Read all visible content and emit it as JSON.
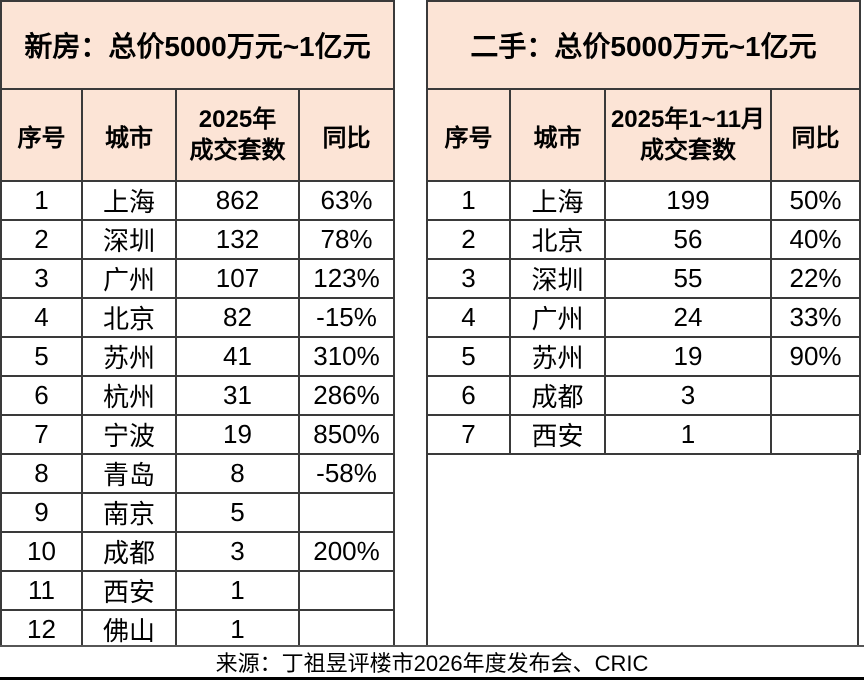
{
  "chart_data": [
    {
      "type": "table",
      "table_name": "new_homes",
      "title": "新房：总价5000万元~1亿元",
      "columns": [
        "序号",
        "城市",
        "2025年成交套数",
        "同比"
      ],
      "col3_lines": [
        "2025年",
        "成交套数"
      ],
      "rows": [
        [
          "1",
          "上海",
          "862",
          "63%"
        ],
        [
          "2",
          "深圳",
          "132",
          "78%"
        ],
        [
          "3",
          "广州",
          "107",
          "123%"
        ],
        [
          "4",
          "北京",
          "82",
          "-15%"
        ],
        [
          "5",
          "苏州",
          "41",
          "310%"
        ],
        [
          "6",
          "杭州",
          "31",
          "286%"
        ],
        [
          "7",
          "宁波",
          "19",
          "850%"
        ],
        [
          "8",
          "青岛",
          "8",
          "-58%"
        ],
        [
          "9",
          "南京",
          "5",
          ""
        ],
        [
          "10",
          "成都",
          "3",
          "200%"
        ],
        [
          "11",
          "西安",
          "1",
          ""
        ],
        [
          "12",
          "佛山",
          "1",
          ""
        ]
      ]
    },
    {
      "type": "table",
      "table_name": "second_hand",
      "title": "二手：总价5000万元~1亿元",
      "columns": [
        "序号",
        "城市",
        "2025年1~11月成交套数",
        "同比"
      ],
      "col3_lines": [
        "2025年1~11月",
        "成交套数"
      ],
      "rows": [
        [
          "1",
          "上海",
          "199",
          "50%"
        ],
        [
          "2",
          "北京",
          "56",
          "40%"
        ],
        [
          "3",
          "深圳",
          "55",
          "22%"
        ],
        [
          "4",
          "广州",
          "24",
          "33%"
        ],
        [
          "5",
          "苏州",
          "19",
          "90%"
        ],
        [
          "6",
          "成都",
          "3",
          ""
        ],
        [
          "7",
          "西安",
          "1",
          ""
        ]
      ]
    }
  ],
  "footer": {
    "source_text": "来源：丁祖昱评楼市2026年度发布会、CRIC"
  },
  "colors": {
    "header_bg": "#FCE4D6",
    "border": "#3A3A3A",
    "footer_divider": "#565656",
    "bottom_bar": "#000000",
    "text": "#000000"
  }
}
